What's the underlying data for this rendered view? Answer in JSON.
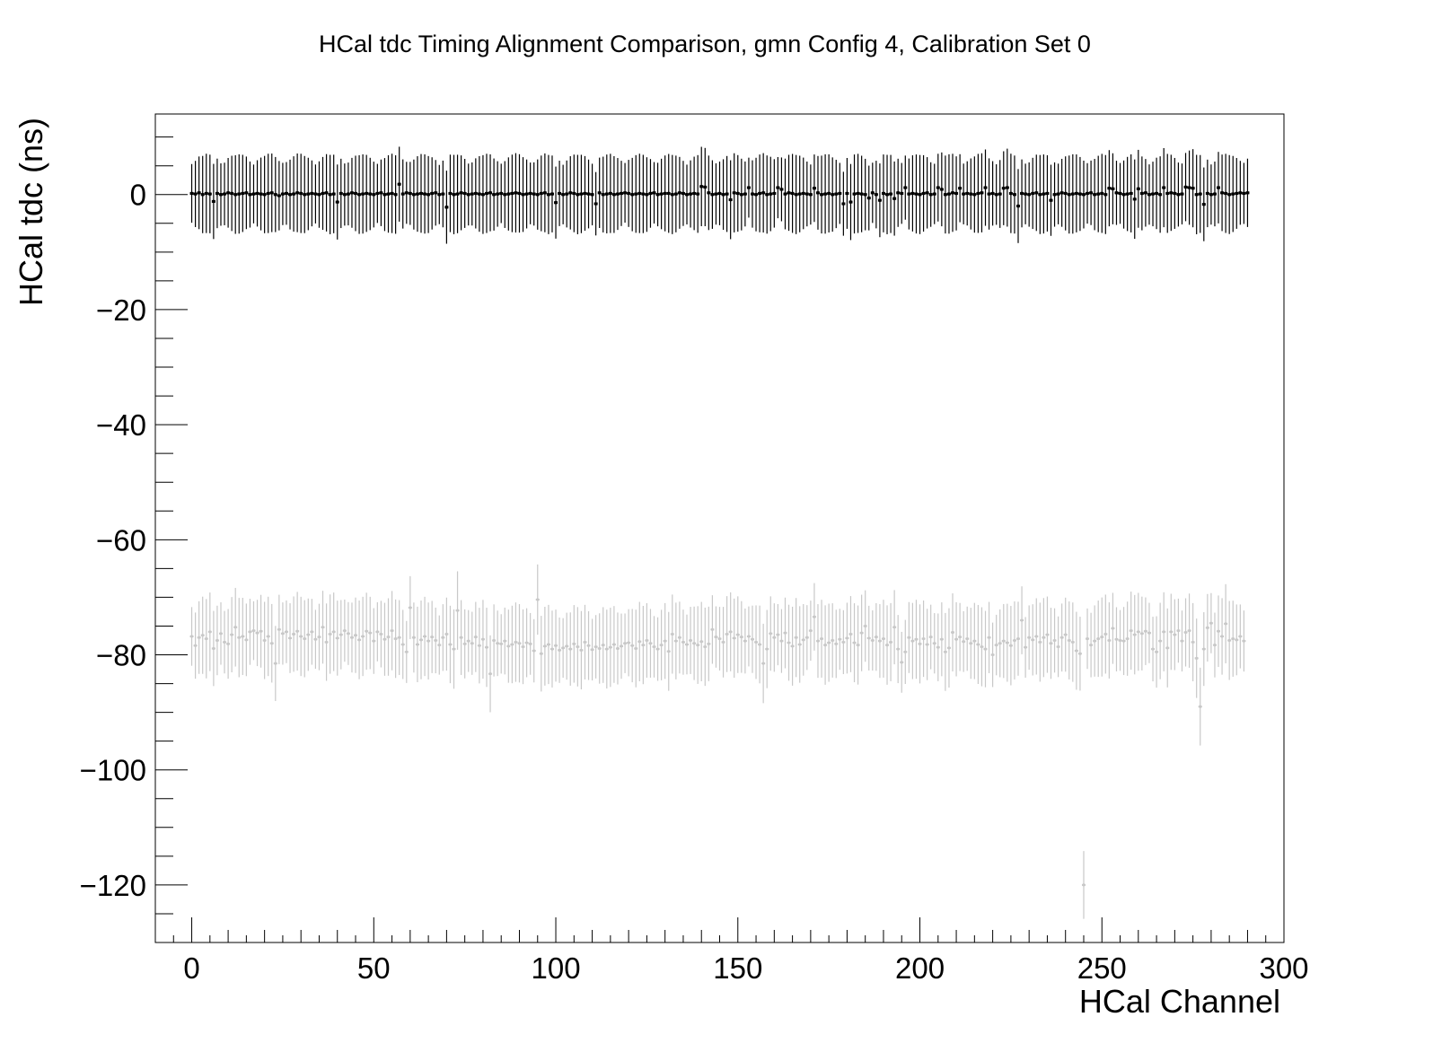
{
  "chart_data": {
    "type": "scatter",
    "title": "HCal tdc Timing Alignment Comparison, gmn Config 4, Calibration Set 0",
    "xlabel": "HCal Channel",
    "ylabel": "HCal tdc (ns)",
    "xlim": [
      -10,
      300
    ],
    "ylim": [
      -130,
      14
    ],
    "x_ticks": [
      0,
      50,
      100,
      150,
      200,
      250,
      300
    ],
    "y_ticks": [
      -120,
      -100,
      -80,
      -60,
      -40,
      -20,
      0
    ],
    "grid": false,
    "legend": "none",
    "series": [
      {
        "color": "#000000",
        "x_start": 0,
        "x_step": 1,
        "y_err_typical": 6,
        "y": [
          0.2,
          0.1,
          0.3,
          0.0,
          0.2,
          0.1,
          -1.2,
          0.2,
          0.0,
          0.1,
          0.3,
          0.2,
          0.0,
          0.1,
          0.2,
          0.3,
          0.0,
          0.1,
          0.2,
          0.1,
          0.0,
          0.2,
          0.3,
          0.0,
          -0.2,
          0.1,
          0.2,
          0.0,
          0.1,
          0.3,
          0.2,
          0.0,
          0.1,
          0.2,
          0.1,
          0.0,
          0.2,
          0.3,
          0.0,
          0.1,
          -1.3,
          0.2,
          0.0,
          0.1,
          0.3,
          0.2,
          0.0,
          0.1,
          0.2,
          0.1,
          0.0,
          0.2,
          0.3,
          0.0,
          0.1,
          0.2,
          0.0,
          1.8,
          0.1,
          0.3,
          0.2,
          0.0,
          0.1,
          0.2,
          0.1,
          0.0,
          0.2,
          0.3,
          0.0,
          0.1,
          -2.2,
          0.2,
          0.0,
          0.1,
          0.3,
          0.2,
          0.0,
          0.1,
          0.2,
          0.1,
          0.0,
          0.2,
          0.3,
          0.0,
          0.1,
          0.2,
          0.0,
          0.1,
          0.2,
          0.3,
          0.2,
          0.0,
          0.1,
          0.2,
          0.1,
          0.0,
          0.2,
          0.3,
          0.0,
          0.1,
          -1.4,
          0.2,
          0.0,
          0.1,
          0.3,
          0.2,
          0.0,
          0.1,
          0.2,
          0.1,
          0.0,
          -1.6,
          0.3,
          0.0,
          0.1,
          0.2,
          0.0,
          0.1,
          0.2,
          0.3,
          0.2,
          0.0,
          0.1,
          0.2,
          0.1,
          0.0,
          0.2,
          0.3,
          0.0,
          0.1,
          0.2,
          0.2,
          0.0,
          0.1,
          0.3,
          0.2,
          0.0,
          0.1,
          0.2,
          0.1,
          1.4,
          1.3,
          0.3,
          0.0,
          0.1,
          0.2,
          0.0,
          0.1,
          -0.9,
          0.3,
          0.2,
          0.0,
          0.1,
          1.2,
          0.1,
          0.0,
          0.2,
          0.3,
          0.0,
          0.1,
          0.2,
          1.2,
          0.9,
          0.1,
          0.3,
          0.2,
          0.0,
          0.1,
          0.2,
          0.1,
          0.0,
          1.1,
          0.3,
          0.0,
          0.1,
          0.2,
          0.0,
          0.1,
          0.2,
          -1.6,
          0.2,
          -1.3,
          0.1,
          0.2,
          0.1,
          0.0,
          -0.6,
          0.3,
          0.0,
          -1.0,
          0.2,
          0.0,
          0.1,
          -0.7,
          0.3,
          0.2,
          1.2,
          0.1,
          0.2,
          0.1,
          0.0,
          0.2,
          0.3,
          0.0,
          0.1,
          1.2,
          0.9,
          0.0,
          0.1,
          0.3,
          0.2,
          1.1,
          0.1,
          0.2,
          0.1,
          0.0,
          0.2,
          0.3,
          1.2,
          0.1,
          0.2,
          0.0,
          0.1,
          1.1,
          1.2,
          0.2,
          0.0,
          -2.0,
          0.2,
          0.1,
          0.0,
          0.2,
          0.3,
          0.0,
          0.1,
          0.2,
          -1.0,
          0.0,
          0.1,
          0.3,
          0.2,
          0.0,
          0.1,
          0.2,
          0.1,
          0.0,
          0.2,
          0.3,
          0.0,
          0.1,
          0.2,
          0.0,
          1.1,
          1.0,
          0.3,
          0.2,
          0.0,
          0.1,
          0.2,
          -0.8,
          1.0,
          0.2,
          0.3,
          0.0,
          0.1,
          0.2,
          0.0,
          1.2,
          0.2,
          0.3,
          0.2,
          0.0,
          0.1,
          1.3,
          1.2,
          1.1,
          0.0,
          0.1,
          -1.7,
          0.2,
          0.0,
          0.1,
          1.2,
          0.3,
          0.2,
          0.0,
          0.1,
          0.2,
          0.3,
          0.2,
          0.3
        ]
      },
      {
        "color": "#c8c8c8",
        "x_start": 0,
        "x_step": 1,
        "y_err_typical": 6,
        "y": [
          -76.8,
          -78.4,
          -77.0,
          -76.6,
          -77.2,
          -76.0,
          -78.9,
          -77.5,
          -76.3,
          -77.8,
          -78.1,
          -76.5,
          -75.2,
          -77.0,
          -76.8,
          -77.4,
          -76.0,
          -75.8,
          -76.2,
          -75.9,
          -77.5,
          -76.8,
          -78.0,
          -81.5,
          -75.6,
          -76.3,
          -76.0,
          -77.1,
          -76.4,
          -75.9,
          -76.8,
          -77.2,
          -76.5,
          -76.0,
          -77.3,
          -76.9,
          -75.2,
          -77.8,
          -76.4,
          -76.0,
          -77.1,
          -76.5,
          -75.8,
          -76.3,
          -77.0,
          -76.6,
          -77.4,
          -76.8,
          -75.9,
          -76.2,
          -77.6,
          -76.0,
          -76.4,
          -77.3,
          -76.9,
          -75.8,
          -77.2,
          -77.0,
          -78.2,
          -79.5,
          -71.8,
          -77.0,
          -78.2,
          -77.4,
          -76.8,
          -77.6,
          -76.9,
          -77.5,
          -78.3,
          -77.0,
          -76.4,
          -78.2,
          -79.0,
          -72.3,
          -77.0,
          -78.1,
          -77.6,
          -78.0,
          -76.9,
          -78.4,
          -77.3,
          -78.7,
          -83.3,
          -77.5,
          -78.0,
          -78.1,
          -77.6,
          -78.5,
          -78.2,
          -77.8,
          -78.0,
          -78.6,
          -77.9,
          -78.1,
          -79.3,
          -70.4,
          -79.8,
          -78.5,
          -78.2,
          -79.0,
          -78.4,
          -79.2,
          -78.8,
          -78.5,
          -79.0,
          -78.1,
          -78.6,
          -79.2,
          -77.8,
          -78.4,
          -79.1,
          -78.6,
          -78.9,
          -78.3,
          -79.0,
          -78.7,
          -78.2,
          -78.9,
          -78.5,
          -78.0,
          -77.9,
          -78.4,
          -78.9,
          -77.7,
          -78.3,
          -77.5,
          -78.0,
          -78.6,
          -79.0,
          -78.3,
          -77.6,
          -79.4,
          -76.4,
          -77.6,
          -77.0,
          -77.8,
          -78.2,
          -77.5,
          -78.0,
          -78.3,
          -77.7,
          -78.6,
          -78.1,
          -75.6,
          -76.9,
          -77.2,
          -77.8,
          -76.4,
          -76.0,
          -77.1,
          -76.5,
          -76.9,
          -77.6,
          -76.8,
          -77.3,
          -77.8,
          -78.2,
          -81.5,
          -79.0,
          -76.3,
          -77.0,
          -76.5,
          -77.6,
          -76.2,
          -77.9,
          -78.5,
          -77.0,
          -78.2,
          -77.4,
          -77.0,
          -75.8,
          -73.4,
          -77.6,
          -77.2,
          -78.3,
          -77.9,
          -77.5,
          -78.1,
          -77.3,
          -77.8,
          -77.1,
          -76.4,
          -77.9,
          -78.3,
          -76.2,
          -75.0,
          -77.1,
          -77.5,
          -76.9,
          -77.6,
          -77.2,
          -78.3,
          -77.8,
          -75.2,
          -79.0,
          -81.3,
          -79.5,
          -77.0,
          -77.6,
          -77.3,
          -78.1,
          -77.2,
          -78.2,
          -76.9,
          -78.0,
          -78.7,
          -77.3,
          -79.5,
          -78.8,
          -76.1,
          -77.3,
          -76.9,
          -77.7,
          -77.2,
          -78.0,
          -77.6,
          -78.2,
          -78.6,
          -79.0,
          -77.0,
          -80.0,
          -78.3,
          -78.0,
          -77.6,
          -77.9,
          -78.4,
          -77.5,
          -77.2,
          -74.0,
          -78.7,
          -77.0,
          -77.4,
          -76.8,
          -77.8,
          -77.0,
          -76.5,
          -78.0,
          -77.5,
          -78.6,
          -77.0,
          -76.5,
          -77.5,
          -77.8,
          -79.3,
          -79.8,
          -120.0,
          -77.2,
          -78.3,
          -77.6,
          -77.2,
          -76.9,
          -76.4,
          -77.5,
          -75.4,
          -77.3,
          -77.5,
          -77.6,
          -77.2,
          -75.8,
          -76.5,
          -76.0,
          -76.3,
          -75.9,
          -76.2,
          -79.0,
          -79.5,
          -77.6,
          -76.0,
          -78.8,
          -76.0,
          -76.5,
          -75.8,
          -77.6,
          -76.1,
          -75.8,
          -77.8,
          -80.6,
          -89.0,
          -79.0,
          -75.3,
          -74.5,
          -78.3,
          -75.9,
          -76.8,
          -74.6,
          -77.5,
          -77.2,
          -77.4,
          -76.8,
          -77.6
        ]
      }
    ]
  }
}
